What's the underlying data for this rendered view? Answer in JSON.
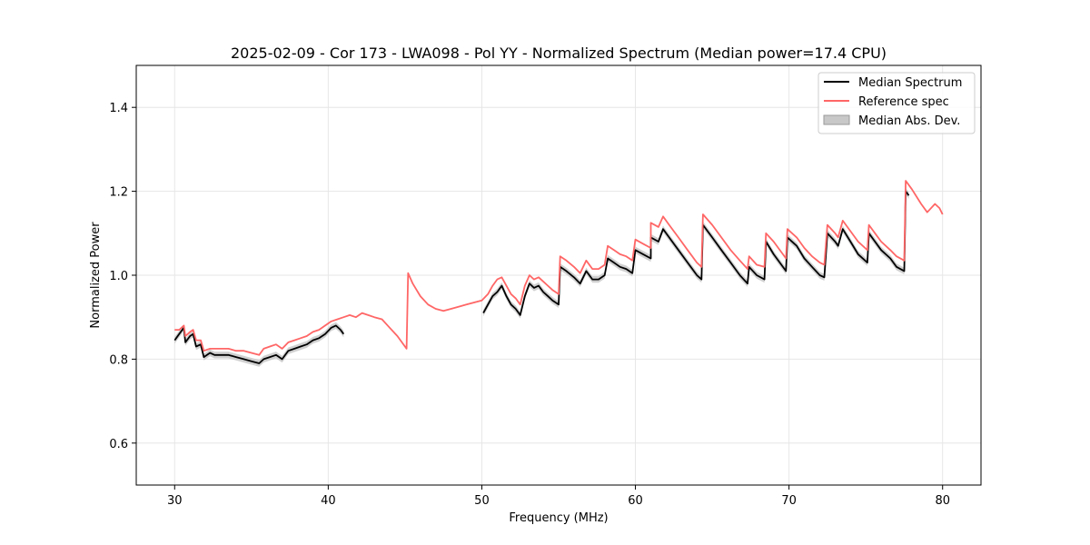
{
  "chart_data": {
    "type": "line",
    "title": "2025-02-09 - Cor 173 - LWA098 - Pol YY - Normalized Spectrum (Median power=17.4 CPU)",
    "xlabel": "Frequency (MHz)",
    "ylabel": "Normalized Power",
    "xlim": [
      27.5,
      82.5
    ],
    "ylim": [
      0.5,
      1.5
    ],
    "xticks": [
      30,
      40,
      50,
      60,
      70,
      80
    ],
    "yticks": [
      0.6,
      0.8,
      1.0,
      1.2,
      1.4
    ],
    "grid": true,
    "legend_position": "top-right",
    "legend": [
      "Median Spectrum",
      "Reference spec",
      "Median Abs. Dev."
    ],
    "colors": {
      "median": "#000000",
      "reference": "#ff6666",
      "mad": "#c8c8c8"
    },
    "series": [
      {
        "name": "Median Spectrum",
        "segments": [
          {
            "x": [
              30.0,
              30.3,
              30.6,
              30.7,
              31.0,
              31.2,
              31.4,
              31.7,
              31.9,
              32.3,
              32.6,
              33.0,
              33.5,
              34.0,
              34.5,
              35.0,
              35.5,
              35.8,
              36.2,
              36.6,
              37.0,
              37.4,
              37.8,
              38.2,
              38.6,
              39.0,
              39.4,
              39.8,
              40.2,
              40.5,
              40.8,
              41.0
            ],
            "y": [
              0.845,
              0.86,
              0.875,
              0.84,
              0.855,
              0.86,
              0.83,
              0.835,
              0.805,
              0.815,
              0.81,
              0.81,
              0.81,
              0.805,
              0.8,
              0.795,
              0.79,
              0.8,
              0.805,
              0.81,
              0.8,
              0.82,
              0.825,
              0.83,
              0.835,
              0.845,
              0.85,
              0.86,
              0.875,
              0.88,
              0.87,
              0.86
            ]
          },
          {
            "x": [
              50.1,
              50.4,
              50.7,
              51.0,
              51.3,
              51.6,
              51.9,
              52.2,
              52.5,
              52.8,
              53.1,
              53.4,
              53.7,
              54.0,
              54.3,
              54.6,
              55.0,
              55.1,
              55.5,
              56.0,
              56.4,
              56.8,
              57.2,
              57.6,
              58.0,
              58.2,
              58.6,
              59.0,
              59.4,
              59.8,
              60.0,
              60.5,
              61.0,
              61.0,
              61.5,
              61.8,
              62.2,
              62.8,
              63.4,
              64.0,
              64.3,
              64.4,
              65.0,
              65.6,
              66.2,
              66.8,
              67.3,
              67.4,
              67.9,
              68.4,
              68.5,
              69.0,
              69.8,
              69.9,
              70.5,
              71.0,
              71.5,
              72.0,
              72.3,
              72.5,
              73.0,
              73.2,
              73.5,
              74.0,
              74.5,
              75.1,
              75.2,
              75.6,
              76.0,
              76.6,
              77.0,
              77.5,
              77.6,
              77.8
            ],
            "y": [
              0.91,
              0.93,
              0.95,
              0.96,
              0.975,
              0.95,
              0.93,
              0.92,
              0.905,
              0.95,
              0.98,
              0.97,
              0.975,
              0.96,
              0.95,
              0.94,
              0.93,
              1.02,
              1.01,
              0.995,
              0.98,
              1.01,
              0.99,
              0.99,
              1.0,
              1.04,
              1.03,
              1.02,
              1.015,
              1.005,
              1.06,
              1.05,
              1.04,
              1.09,
              1.08,
              1.11,
              1.09,
              1.06,
              1.03,
              1.0,
              0.99,
              1.12,
              1.09,
              1.06,
              1.03,
              1.0,
              0.98,
              1.02,
              1.0,
              0.99,
              1.08,
              1.05,
              1.01,
              1.09,
              1.07,
              1.04,
              1.02,
              1.0,
              0.995,
              1.1,
              1.08,
              1.07,
              1.11,
              1.08,
              1.05,
              1.03,
              1.1,
              1.08,
              1.06,
              1.04,
              1.02,
              1.01,
              1.2,
              1.19
            ]
          }
        ]
      },
      {
        "name": "Reference spec",
        "segments": [
          {
            "x": [
              30.0,
              30.3,
              30.6,
              30.7,
              31.0,
              31.2,
              31.4,
              31.7,
              31.9,
              32.3,
              32.6,
              33.0,
              33.5,
              34.0,
              34.5,
              35.0,
              35.5,
              35.8,
              36.2,
              36.6,
              37.0,
              37.4,
              37.8,
              38.2,
              38.6,
              39.0,
              39.4,
              39.8,
              40.2,
              40.6,
              41.0,
              41.4,
              41.8,
              42.2,
              42.6,
              43.0,
              43.5,
              44.0,
              44.5,
              45.1,
              45.2,
              45.5,
              46.0,
              46.5,
              47.0,
              47.5,
              48.0,
              48.5,
              49.0,
              49.5,
              50.0,
              50.4,
              50.7,
              51.0,
              51.3,
              51.6,
              51.9,
              52.2,
              52.5,
              52.8,
              53.1,
              53.4,
              53.7,
              54.0,
              54.3,
              54.6,
              55.0,
              55.1,
              55.5,
              56.0,
              56.4,
              56.8,
              57.2,
              57.6,
              58.0,
              58.2,
              58.6,
              59.0,
              59.4,
              59.8,
              60.0,
              60.5,
              61.0,
              61.0,
              61.5,
              61.8,
              62.2,
              62.8,
              63.4,
              64.0,
              64.3,
              64.4,
              65.0,
              65.6,
              66.2,
              66.8,
              67.3,
              67.4,
              67.9,
              68.4,
              68.5,
              69.0,
              69.8,
              69.9,
              70.5,
              71.0,
              71.5,
              72.0,
              72.3,
              72.5,
              73.0,
              73.2,
              73.5,
              74.0,
              74.5,
              75.1,
              75.2,
              75.6,
              76.0,
              76.6,
              77.0,
              77.5,
              77.6,
              78.0,
              78.6,
              79.0,
              79.5,
              79.8,
              80.0
            ],
            "y": [
              0.87,
              0.87,
              0.88,
              0.855,
              0.865,
              0.87,
              0.845,
              0.845,
              0.82,
              0.825,
              0.825,
              0.825,
              0.825,
              0.82,
              0.82,
              0.815,
              0.81,
              0.825,
              0.83,
              0.835,
              0.825,
              0.84,
              0.845,
              0.85,
              0.855,
              0.865,
              0.87,
              0.88,
              0.89,
              0.895,
              0.9,
              0.905,
              0.9,
              0.91,
              0.905,
              0.9,
              0.895,
              0.875,
              0.855,
              0.825,
              1.005,
              0.98,
              0.95,
              0.93,
              0.92,
              0.915,
              0.92,
              0.925,
              0.93,
              0.935,
              0.94,
              0.955,
              0.975,
              0.99,
              0.995,
              0.975,
              0.955,
              0.945,
              0.93,
              0.975,
              1.0,
              0.99,
              0.995,
              0.985,
              0.975,
              0.965,
              0.955,
              1.045,
              1.035,
              1.02,
              1.005,
              1.035,
              1.015,
              1.015,
              1.025,
              1.07,
              1.06,
              1.05,
              1.045,
              1.035,
              1.085,
              1.075,
              1.065,
              1.125,
              1.115,
              1.14,
              1.12,
              1.09,
              1.06,
              1.03,
              1.02,
              1.145,
              1.12,
              1.09,
              1.06,
              1.035,
              1.015,
              1.045,
              1.025,
              1.02,
              1.1,
              1.08,
              1.04,
              1.11,
              1.09,
              1.065,
              1.045,
              1.03,
              1.025,
              1.12,
              1.1,
              1.09,
              1.13,
              1.105,
              1.08,
              1.06,
              1.12,
              1.1,
              1.08,
              1.06,
              1.045,
              1.035,
              1.225,
              1.205,
              1.17,
              1.15,
              1.17,
              1.16,
              1.145
            ]
          }
        ]
      }
    ],
    "mad_width": 0.008
  }
}
